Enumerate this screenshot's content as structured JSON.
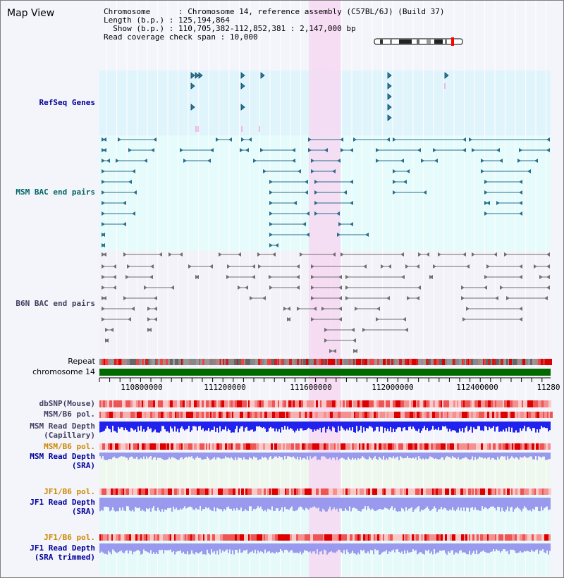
{
  "header": {
    "title": "Map View",
    "chromosome_label": "Chromosome",
    "chromosome_value": "Chromosome 14, reference assembly (C57BL/6J) (Build 37)",
    "length_label": "Length (b.p.)",
    "length_value": "125,194,864",
    "show_label": "Show (b.p.)",
    "show_value": "110,705,382-112,852,381 : 2,147,000 bp",
    "coverage_label": "Read coverage check span",
    "coverage_value": "10,000"
  },
  "tracks": {
    "refseq": "RefSeq Genes",
    "msm_bac": "MSM BAC end pairs",
    "b6n_bac": "B6N BAC end pairs",
    "repeat": "Repeat",
    "chromosome": "chromosome 14",
    "dbsnp": "dbSNP(Mouse)",
    "msm_b6_pol": "MSM/B6 pol.",
    "msm_read_depth_cap_1": "MSM Read Depth",
    "msm_read_depth_cap_2": "(Capillary)",
    "msm_b6_pol_2": "MSM/B6 pol.",
    "msm_read_depth_sra_1": "MSM Read Depth",
    "msm_read_depth_sra_2": "(SRA)",
    "jf1_b6_pol": "JF1/B6 pol.",
    "jf1_read_depth_sra_1": "JF1 Read Depth",
    "jf1_read_depth_sra_2": "(SRA)",
    "jf1_b6_pol_2": "JF1/B6 pol.",
    "jf1_read_depth_trim_1": "JF1 Read Depth",
    "jf1_read_depth_trim_2": "(SRA trimmed)"
  },
  "axis": {
    "ticks": [
      "110800000",
      "111200000",
      "111600000",
      "112000000",
      "112400000",
      "11280"
    ]
  },
  "colors": {
    "refseq_bg": "#e0f4fc",
    "msm_bg": "#e6fbfb",
    "b6n_bg": "#f2f2f8",
    "highlight": "#f6d8f2",
    "msm_pair": "#2a6e8c",
    "b6n_pair": "#707070",
    "chromosome_bar": "#006a00",
    "label_blue": "#000099",
    "label_teal": "#006666",
    "label_grey": "#404060",
    "label_orange": "#cc8800",
    "depth_capillary": "#2222ee",
    "depth_sra": "#9999ee"
  }
}
